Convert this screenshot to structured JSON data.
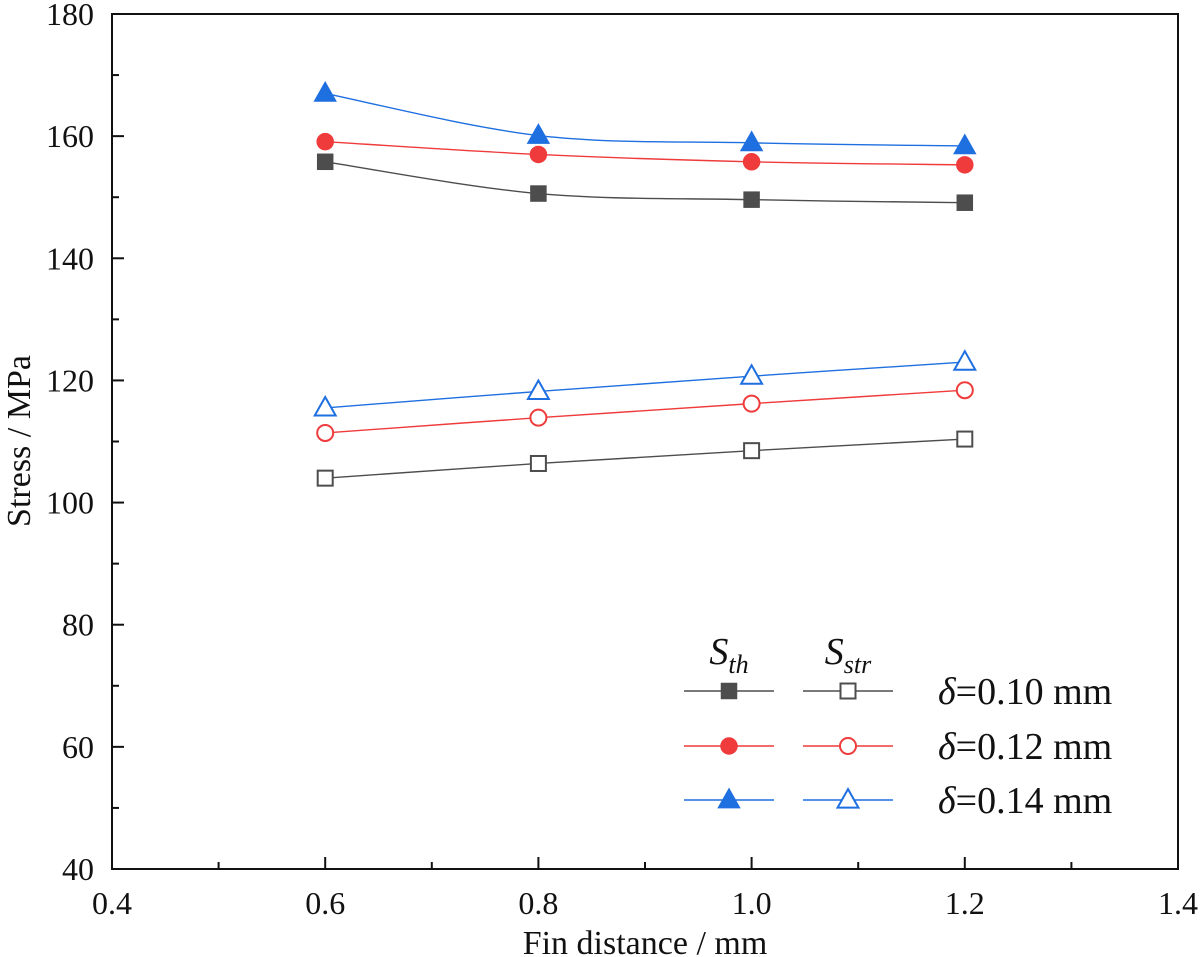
{
  "chart_data": {
    "type": "line",
    "title": "",
    "xlabel": "Fin distance / mm",
    "ylabel": "Stress / MPa",
    "xlim": [
      0.4,
      1.4
    ],
    "ylim": [
      40,
      180
    ],
    "grid": false,
    "legend_position": "bottom-right",
    "x_ticks": [
      "0.4",
      "0.6",
      "0.8",
      "1.0",
      "1.2",
      "1.4"
    ],
    "y_ticks": [
      "40",
      "60",
      "80",
      "100",
      "120",
      "140",
      "160",
      "180"
    ],
    "x": [
      0.6,
      0.8,
      1.0,
      1.2
    ],
    "legend": {
      "col_headers": [
        {
          "main": "S",
          "sub": "th"
        },
        {
          "main": "S",
          "sub": "str"
        }
      ],
      "row_labels": [
        {
          "symbol": "δ",
          "text": "=0.10 mm"
        },
        {
          "symbol": "δ",
          "text": "=0.12 mm"
        },
        {
          "symbol": "δ",
          "text": "=0.14 mm"
        }
      ]
    },
    "series": [
      {
        "name": "S_th δ=0.10 mm",
        "color": "#4d4d4d",
        "marker": "square",
        "filled": true,
        "values": [
          155.8,
          150.6,
          149.6,
          149.1
        ]
      },
      {
        "name": "S_th δ=0.12 mm",
        "color": "#ef3b3b",
        "marker": "circle",
        "filled": true,
        "values": [
          159.1,
          157.0,
          155.8,
          155.3
        ]
      },
      {
        "name": "S_th δ=0.14 mm",
        "color": "#1e6fe0",
        "marker": "triangle",
        "filled": true,
        "values": [
          167.0,
          160.1,
          158.9,
          158.4
        ]
      },
      {
        "name": "S_str δ=0.10 mm",
        "color": "#4d4d4d",
        "marker": "square",
        "filled": false,
        "values": [
          104.0,
          106.4,
          108.5,
          110.4
        ]
      },
      {
        "name": "S_str δ=0.12 mm",
        "color": "#ef3b3b",
        "marker": "circle",
        "filled": false,
        "values": [
          111.4,
          113.9,
          116.2,
          118.4
        ]
      },
      {
        "name": "S_str δ=0.14 mm",
        "color": "#1e6fe0",
        "marker": "triangle",
        "filled": false,
        "values": [
          115.5,
          118.2,
          120.7,
          123.0
        ]
      }
    ]
  }
}
